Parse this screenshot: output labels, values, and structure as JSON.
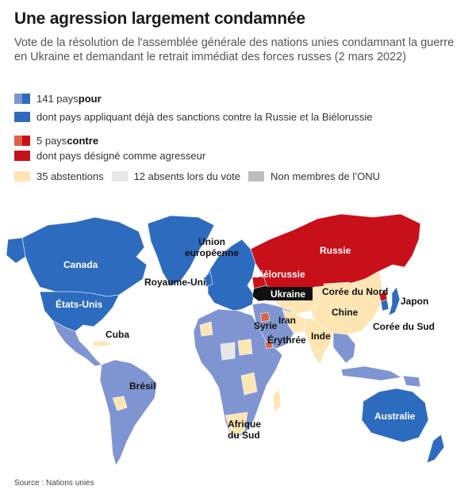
{
  "title": "Une agression largement condamnée",
  "subtitle": "Vote de la résolution de l'assemblée générale des nations unies condamnant la guerre en Ukraine et demandant le retrait immédiat des forces russes (2 mars 2022)",
  "legend": {
    "for_count": "141 pays ",
    "for_word": "pour",
    "for_sanctions": "dont pays appliquant déjà des sanctions contre la Russie et la Biélorussie",
    "against_count": "5 pays ",
    "against_word": "contre",
    "against_aggressor": "dont pays désigné comme agresseur",
    "abstentions": "35 abstentions",
    "absent": "12 absents lors du vote",
    "non_members": "Non membres de l’ONU"
  },
  "colors": {
    "for": "#7f95d1",
    "for_sanctions": "#2d6bbf",
    "against": "#d9624a",
    "aggressor": "#c8101a",
    "abstention": "#fde5b4",
    "absent": "#e6e6e6",
    "non_member": "#bdbdbd",
    "ukraine": "#111111"
  },
  "map_labels": {
    "canada": "Canada",
    "union1": "Union",
    "union2": "européenne",
    "russie": "Russie",
    "bielorussie": "Biélorussie",
    "royaume_uni": "Royaume-Uni",
    "ukraine": "Ukraine",
    "coree_nord": "Corée du Nord",
    "etats_unis": "États-Unis",
    "japon": "Japon",
    "iran": "Iran",
    "chine": "Chine",
    "syrie": "Syrie",
    "coree_sud": "Corée du Sud",
    "cuba": "Cuba",
    "erythree": "Érythrée",
    "inde": "Inde",
    "bresil": "Brésil",
    "australie": "Australie",
    "afrique1": "Afrique",
    "afrique2": "du Sud"
  },
  "source": "Source : Nations unies"
}
